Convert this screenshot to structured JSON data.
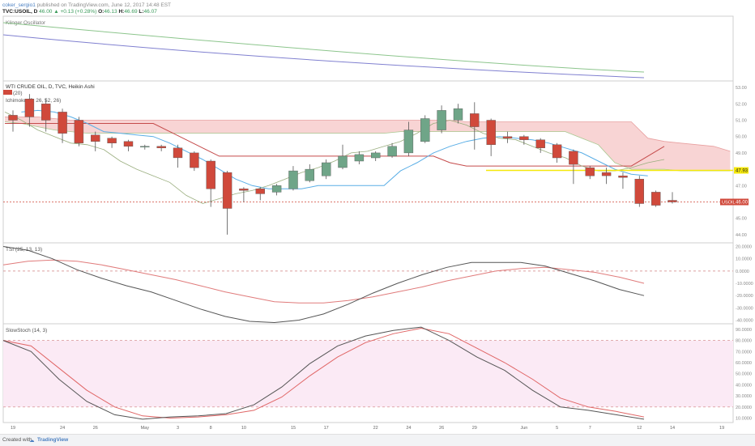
{
  "header": {
    "publisher_line": {
      "author": "coker_sergio1",
      "rest": " published on TradingView.com, June 12, 2017 14:48 EST"
    },
    "symbol": "TVC:USOIL, D",
    "change_value": "46.00",
    "change_delta": "▲ +0.13 (+0.28%)",
    "o_label": "O:",
    "o_value": "46.13",
    "h_label": "H:",
    "h_value": "46.69",
    "l_label": "L:",
    "l_value": "46.07"
  },
  "footer": {
    "created_with": "Created with",
    "logo": "TradingView"
  },
  "colors": {
    "bull": "#6fa588",
    "bear": "#d0493b",
    "kijun": "#c54b4b",
    "tenkan": "#5aaee6",
    "chikou": "#9aae7f",
    "cloud": "#f8d4d4",
    "yellow": "#f5e80a",
    "klinger_a": "#8cc58c",
    "klinger_b": "#8080d0",
    "tsi": "#555555",
    "tsi_sig": "#e07b7b",
    "stoch_k": "#555555",
    "stoch_d": "#e06666",
    "stoch_band": "#fbeaf5"
  },
  "chart_data": [
    {
      "type": "line",
      "title": "Klinger Oscillator",
      "series": [],
      "note": "no axis values printed"
    },
    {
      "type": "candlestick",
      "title": "WTI CRUDE OIL, D, TVC, Heikin Ashi",
      "legend": [
        "(20)",
        "Ichimoku (9, 26, 52, 26)"
      ],
      "yticks": [
        "53.00",
        "52.00",
        "51.00",
        "50.00",
        "49.00",
        "48.00",
        "47.00",
        "46.00",
        "45.00",
        "44.00"
      ],
      "ylim": [
        43.5,
        53.4
      ],
      "last_price_label": "USOIL",
      "last_price": "46.00",
      "horizontal_line": "47.93",
      "candles": [
        {
          "o": 51.3,
          "c": 51.0,
          "h": 51.6,
          "l": 50.3
        },
        {
          "o": 52.3,
          "c": 51.2,
          "h": 52.6,
          "l": 50.6
        },
        {
          "o": 52.0,
          "c": 51.0,
          "h": 52.3,
          "l": 50.3
        },
        {
          "o": 51.5,
          "c": 50.2,
          "h": 51.7,
          "l": 49.6
        },
        {
          "o": 51.0,
          "c": 49.6,
          "h": 51.2,
          "l": 49.4
        },
        {
          "o": 50.1,
          "c": 49.7,
          "h": 50.3,
          "l": 49.1
        },
        {
          "o": 49.9,
          "c": 49.6,
          "h": 50.0,
          "l": 49.3
        },
        {
          "o": 49.7,
          "c": 49.4,
          "h": 49.8,
          "l": 49.1
        },
        {
          "o": 49.4,
          "c": 49.4,
          "h": 49.5,
          "l": 49.2
        },
        {
          "o": 49.4,
          "c": 49.3,
          "h": 49.5,
          "l": 49.1
        },
        {
          "o": 49.3,
          "c": 48.7,
          "h": 49.5,
          "l": 48.1
        },
        {
          "o": 49.0,
          "c": 48.1,
          "h": 49.1,
          "l": 47.9
        },
        {
          "o": 48.5,
          "c": 46.8,
          "h": 48.6,
          "l": 45.7
        },
        {
          "o": 47.8,
          "c": 45.6,
          "h": 47.9,
          "l": 44.0
        },
        {
          "o": 46.8,
          "c": 46.7,
          "h": 46.9,
          "l": 46.0
        },
        {
          "o": 46.8,
          "c": 46.5,
          "h": 46.9,
          "l": 46.1
        },
        {
          "o": 46.6,
          "c": 47.0,
          "h": 47.1,
          "l": 46.4
        },
        {
          "o": 46.8,
          "c": 47.9,
          "h": 48.2,
          "l": 46.7
        },
        {
          "o": 47.3,
          "c": 48.0,
          "h": 48.3,
          "l": 47.2
        },
        {
          "o": 47.6,
          "c": 48.4,
          "h": 48.6,
          "l": 47.4
        },
        {
          "o": 48.1,
          "c": 48.8,
          "h": 49.5,
          "l": 48.0
        },
        {
          "o": 48.5,
          "c": 48.9,
          "h": 49.1,
          "l": 48.3
        },
        {
          "o": 48.7,
          "c": 49.0,
          "h": 49.1,
          "l": 48.5
        },
        {
          "o": 48.8,
          "c": 49.4,
          "h": 49.6,
          "l": 48.7
        },
        {
          "o": 49.0,
          "c": 50.4,
          "h": 50.9,
          "l": 48.8
        },
        {
          "o": 49.7,
          "c": 51.1,
          "h": 51.3,
          "l": 49.6
        },
        {
          "o": 50.4,
          "c": 51.6,
          "h": 51.9,
          "l": 50.2
        },
        {
          "o": 51.0,
          "c": 51.7,
          "h": 52.0,
          "l": 50.8
        },
        {
          "o": 51.4,
          "c": 50.6,
          "h": 52.1,
          "l": 49.2
        },
        {
          "o": 51.0,
          "c": 49.5,
          "h": 51.1,
          "l": 48.8
        },
        {
          "o": 50.0,
          "c": 49.9,
          "h": 50.3,
          "l": 49.6
        },
        {
          "o": 50.0,
          "c": 49.8,
          "h": 50.1,
          "l": 49.5
        },
        {
          "o": 49.8,
          "c": 49.3,
          "h": 49.9,
          "l": 49.0
        },
        {
          "o": 49.5,
          "c": 48.7,
          "h": 49.6,
          "l": 48.4
        },
        {
          "o": 49.1,
          "c": 48.3,
          "h": 49.2,
          "l": 47.1
        },
        {
          "o": 48.1,
          "c": 47.6,
          "h": 48.2,
          "l": 47.4
        },
        {
          "o": 47.8,
          "c": 47.6,
          "h": 48.1,
          "l": 47.1
        },
        {
          "o": 47.6,
          "c": 47.5,
          "h": 47.8,
          "l": 46.8
        },
        {
          "o": 47.4,
          "c": 45.9,
          "h": 47.6,
          "l": 45.7
        },
        {
          "o": 46.6,
          "c": 45.8,
          "h": 46.7,
          "l": 45.7
        },
        {
          "o": 46.1,
          "c": 46.0,
          "h": 46.6,
          "l": 45.9
        }
      ],
      "kijun": [
        50.8,
        50.8,
        50.8,
        50.8,
        50.8,
        50.8,
        50.8,
        50.8,
        50.8,
        50.8,
        50.3,
        49.8,
        49.3,
        48.8,
        48.8,
        48.8,
        48.8,
        48.8,
        48.8,
        48.8,
        48.8,
        48.8,
        48.8,
        48.8,
        48.8,
        48.8,
        48.8,
        48.4,
        48.2,
        48.2,
        48.2,
        48.2,
        48.2,
        48.2,
        48.2,
        48.2,
        48.2,
        48.2,
        48.2,
        48.8,
        49.4
      ],
      "tenkan": [
        null,
        51.5,
        51.6,
        51.5,
        51.2,
        50.8,
        50.3,
        50.2,
        50.1,
        50.0,
        49.6,
        49.1,
        48.6,
        48.0,
        47.4,
        47.0,
        46.8,
        46.8,
        46.8,
        47.0,
        47.0,
        47.0,
        47.0,
        47.0,
        47.9,
        48.4,
        49.0,
        49.4,
        49.7,
        49.9,
        50.0,
        49.9,
        49.8,
        49.6,
        49.3,
        49.0,
        48.5,
        48.0,
        47.7,
        47.6,
        null
      ],
      "chikou": [
        51.5,
        51.0,
        50.4,
        50.0,
        49.6,
        49.5,
        49.2,
        48.5,
        48.0,
        47.6,
        47.2,
        46.4,
        45.9,
        46.2,
        46.5,
        46.7,
        47.0,
        47.4,
        47.8,
        48.1,
        48.5,
        49.0,
        49.1,
        49.4,
        49.7,
        50.2,
        50.8,
        51.0,
        50.7,
        50.2,
        49.9,
        49.8,
        49.4,
        49.0,
        48.7,
        48.2,
        47.9,
        47.9,
        48.1,
        48.4,
        48.6
      ],
      "cloud_upper": [
        51.2,
        51.2,
        51.2,
        51.1,
        51.0,
        51.0,
        51.0,
        51.0,
        51.0,
        51.0,
        51.0,
        51.0,
        51.0,
        51.0,
        51.0,
        51.0,
        51.0,
        51.0,
        51.0,
        51.0,
        51.0,
        51.0,
        51.0,
        51.0,
        51.0,
        51.0,
        51.0,
        51.0,
        50.9,
        50.9,
        50.9,
        50.9,
        50.9,
        50.9,
        50.9,
        50.9,
        50.9,
        50.9,
        50.9,
        49.9,
        49.7,
        49.6,
        49.5,
        49.4,
        49.1
      ],
      "cloud_lower": [
        50.9,
        50.8,
        50.6,
        50.4,
        50.3,
        50.2,
        50.2,
        50.2,
        50.2,
        50.2,
        50.2,
        50.2,
        50.2,
        50.2,
        50.2,
        50.2,
        50.2,
        50.2,
        50.2,
        50.2,
        50.2,
        50.2,
        50.2,
        50.2,
        50.3,
        50.3,
        50.3,
        50.3,
        50.3,
        50.3,
        50.3,
        50.3,
        50.3,
        50.3,
        50.3,
        49.9,
        49.5,
        48.4,
        48.0,
        48.0,
        48.0,
        47.9,
        47.9,
        47.9,
        47.9
      ]
    },
    {
      "type": "line",
      "title": "TSI (25, 13, 13)",
      "yticks": [
        "20.0000",
        "10.0000",
        "0.0000",
        "-10.0000",
        "-20.0000",
        "-30.0000",
        "-40.0000"
      ],
      "ylim": [
        -43,
        23
      ],
      "series": [
        {
          "name": "TSI",
          "values": [
            20,
            17,
            10,
            1,
            -6,
            -12,
            -17,
            -24,
            -31,
            -37,
            -41,
            -42,
            -40,
            -35,
            -27,
            -18,
            -10,
            -3,
            3,
            7,
            7,
            7,
            4,
            -2,
            -8,
            -15,
            -20
          ]
        },
        {
          "name": "Signal",
          "values": [
            5,
            8,
            9,
            8,
            5,
            1,
            -3,
            -7,
            -12,
            -17,
            -21,
            -25,
            -26,
            -26,
            -24,
            -21,
            -17,
            -13,
            -8,
            -4,
            0,
            2,
            3,
            1,
            -1,
            -5,
            -10
          ]
        }
      ]
    },
    {
      "type": "line",
      "title": "SlowStoch (14, 3)",
      "yticks": [
        "90.0000",
        "80.0000",
        "70.0000",
        "60.0000",
        "50.0000",
        "40.0000",
        "30.0000",
        "20.0000",
        "10.0000"
      ],
      "ylim": [
        6,
        95
      ],
      "band": [
        20,
        80
      ],
      "series": [
        {
          "name": "%K",
          "values": [
            80,
            70,
            45,
            25,
            13,
            9,
            11,
            12,
            14,
            22,
            38,
            59,
            75,
            84,
            89,
            92,
            80,
            65,
            53,
            35,
            20,
            17,
            13,
            9
          ]
        },
        {
          "name": "%D",
          "values": [
            80,
            75,
            55,
            35,
            20,
            12,
            10,
            11,
            13,
            17,
            29,
            48,
            65,
            78,
            86,
            91,
            86,
            73,
            60,
            45,
            28,
            20,
            16,
            11
          ]
        }
      ],
      "xticks": [
        "19",
        "24",
        "26",
        "May",
        "3",
        "8",
        "10",
        "15",
        "17",
        "22",
        "24",
        "26",
        "29",
        "Jun",
        "5",
        "7",
        "12",
        "14",
        "19"
      ]
    }
  ]
}
